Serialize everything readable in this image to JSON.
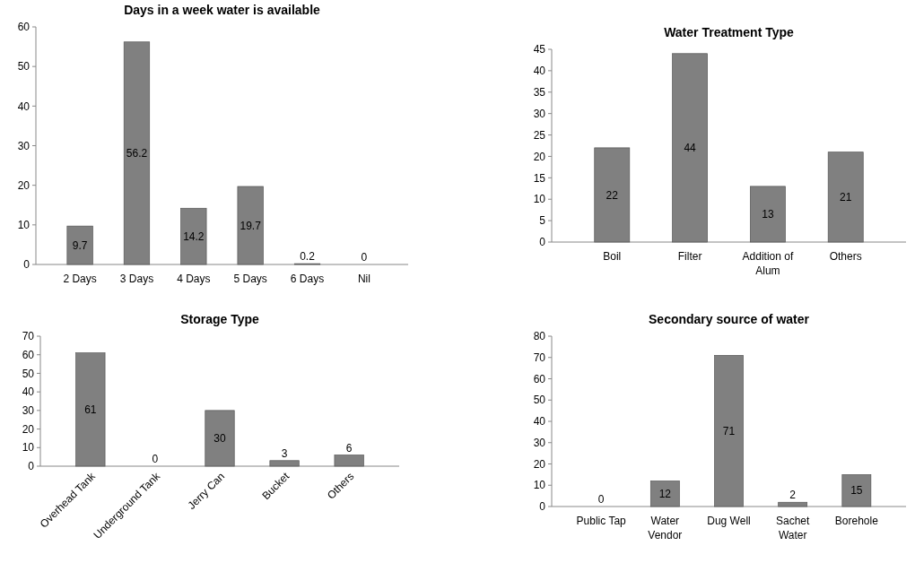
{
  "chart_data": [
    {
      "type": "bar",
      "title": "Days in a week water is available",
      "categories": [
        "2 Days",
        "3 Days",
        "4 Days",
        "5 Days",
        "6 Days",
        "Nil"
      ],
      "values": [
        9.7,
        56.2,
        14.2,
        19.7,
        0.2,
        0
      ],
      "color": "#808080",
      "ylim": [
        0,
        60
      ],
      "yticks": [
        0,
        10,
        20,
        30,
        40,
        50,
        60
      ],
      "data_labels": true
    },
    {
      "type": "bar",
      "title": "Water Treatment Type",
      "categories": [
        "Boil",
        "Filter",
        "Addition of Alum",
        "Others"
      ],
      "values": [
        22,
        44,
        13,
        21
      ],
      "color": "#808080",
      "ylim": [
        0,
        45
      ],
      "yticks": [
        0,
        5,
        10,
        15,
        20,
        25,
        30,
        35,
        40,
        45
      ],
      "data_labels": true
    },
    {
      "type": "bar",
      "title": "Storage Type",
      "categories": [
        "Overhead Tank",
        "Underground Tank",
        "Jerry Can",
        "Bucket",
        "Others"
      ],
      "values": [
        61,
        0,
        30,
        3,
        6
      ],
      "color": "#808080",
      "ylim": [
        0,
        70
      ],
      "yticks": [
        0,
        10,
        20,
        30,
        40,
        50,
        60,
        70
      ],
      "data_labels": true
    },
    {
      "type": "bar",
      "title": "Secondary source of water",
      "categories": [
        "Public Tap",
        "Water Vendor",
        "Dug Well",
        "Sachet Water",
        "Borehole"
      ],
      "values": [
        0,
        12,
        71,
        2,
        15
      ],
      "color": "#808080",
      "ylim": [
        0,
        80
      ],
      "yticks": [
        0,
        10,
        20,
        30,
        40,
        50,
        60,
        70,
        80
      ],
      "data_labels": true
    }
  ]
}
